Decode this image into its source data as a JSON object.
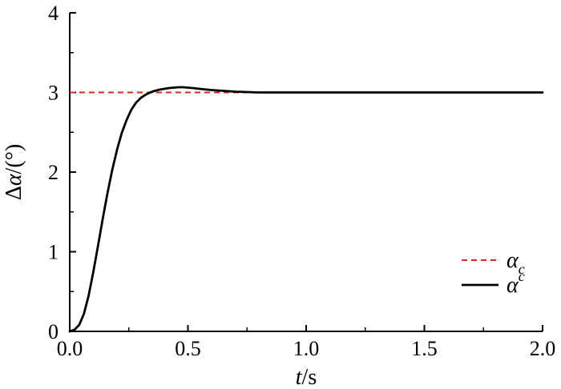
{
  "chart_data": {
    "type": "line",
    "xlabel_italic": "t",
    "xlabel_rest": "/s",
    "ylabel_prefix": "Δ",
    "ylabel_italic": "α",
    "ylabel_rest": "/(°)",
    "xlim": [
      0,
      2.0
    ],
    "ylim": [
      0,
      4
    ],
    "xticks": [
      {
        "value": 0,
        "label": "0.0"
      },
      {
        "value": 0.5,
        "label": "0.5"
      },
      {
        "value": 1.0,
        "label": "1.0"
      },
      {
        "value": 1.5,
        "label": "1.5"
      },
      {
        "value": 2.0,
        "label": "2.0"
      }
    ],
    "yticks": [
      {
        "value": 0,
        "label": "0"
      },
      {
        "value": 1,
        "label": "1"
      },
      {
        "value": 2,
        "label": "2"
      },
      {
        "value": 3,
        "label": "3"
      },
      {
        "value": 4,
        "label": "4"
      }
    ],
    "grid": false,
    "legend_position": "bottom-right",
    "series": [
      {
        "name": "α",
        "name_sub": "c",
        "style": "dashed",
        "color": "#e0241b",
        "x": [
          0,
          2.0
        ],
        "y": [
          3,
          3
        ]
      },
      {
        "name": "α",
        "name_sup": "c",
        "style": "solid",
        "color": "#000000",
        "x": [
          0,
          0.02,
          0.04,
          0.06,
          0.08,
          0.1,
          0.12,
          0.14,
          0.16,
          0.18,
          0.2,
          0.22,
          0.24,
          0.26,
          0.28,
          0.3,
          0.32,
          0.34,
          0.36,
          0.38,
          0.4,
          0.42,
          0.44,
          0.46,
          0.48,
          0.5,
          0.52,
          0.55,
          0.6,
          0.65,
          0.7,
          0.75,
          0.8,
          0.85,
          0.9,
          1.0,
          1.2,
          1.4,
          1.6,
          1.8,
          2.0
        ],
        "y": [
          0,
          0.02,
          0.08,
          0.22,
          0.45,
          0.75,
          1.08,
          1.42,
          1.74,
          2.03,
          2.28,
          2.49,
          2.65,
          2.78,
          2.87,
          2.93,
          2.97,
          3.0,
          3.02,
          3.035,
          3.045,
          3.055,
          3.06,
          3.065,
          3.065,
          3.06,
          3.055,
          3.045,
          3.03,
          3.02,
          3.01,
          3.005,
          3.0,
          3.0,
          3.0,
          3.0,
          3.0,
          3.0,
          3.0,
          3.0,
          3.0
        ]
      }
    ]
  }
}
